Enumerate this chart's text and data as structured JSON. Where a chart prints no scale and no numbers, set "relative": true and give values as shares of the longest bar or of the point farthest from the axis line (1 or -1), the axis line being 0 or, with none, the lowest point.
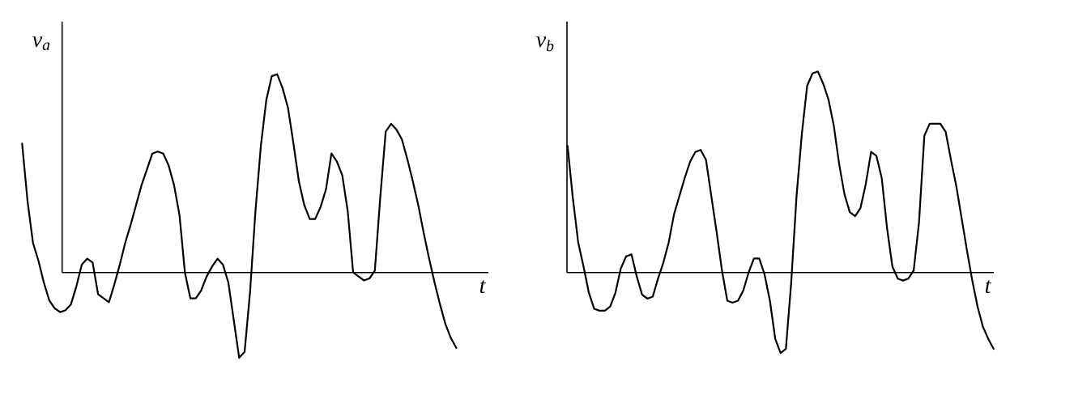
{
  "chart_data": [
    {
      "type": "line",
      "relative": true,
      "ylabel": "v$_{a}$",
      "xlabel": "t",
      "categories": [
        null,
        null,
        null,
        null,
        null,
        null,
        null,
        null,
        null,
        null,
        null,
        null,
        null,
        null,
        null,
        null,
        null,
        null,
        null,
        null,
        null,
        null,
        null,
        null,
        null,
        null,
        null,
        null,
        null,
        null,
        null,
        null,
        null,
        null,
        null,
        null,
        null,
        null,
        null,
        null,
        null,
        null,
        null,
        null,
        null,
        null,
        null,
        null,
        null,
        null,
        null,
        null,
        null,
        null,
        null,
        null,
        null,
        null,
        null,
        null,
        null,
        null,
        null,
        null,
        null,
        null,
        null,
        null,
        null,
        null,
        null,
        null,
        null,
        null,
        null,
        null,
        null,
        null,
        null,
        null,
        null
      ],
      "series": [
        {
          "color": "#000000",
          "values": [
            0.65,
            0.36,
            0.15,
            0.06,
            -0.05,
            -0.14,
            -0.18,
            -0.2,
            -0.19,
            -0.16,
            -0.07,
            0.04,
            0.07,
            0.05,
            -0.11,
            -0.13,
            -0.15,
            -0.06,
            0.04,
            0.15,
            0.24,
            0.34,
            0.44,
            0.52,
            0.6,
            0.61,
            0.6,
            0.54,
            0.44,
            0.29,
            0.0,
            -0.13,
            -0.13,
            -0.09,
            -0.02,
            0.03,
            0.07,
            0.04,
            -0.05,
            -0.24,
            -0.43,
            -0.4,
            -0.1,
            0.31,
            0.64,
            0.87,
            0.99,
            1.0,
            0.93,
            0.83,
            0.65,
            0.46,
            0.34,
            0.27,
            0.27,
            0.33,
            0.42,
            0.6,
            0.56,
            0.49,
            0.31,
            0.0,
            -0.02,
            -0.04,
            -0.03,
            0.01,
            0.38,
            0.71,
            0.75,
            0.72,
            0.67,
            0.57,
            0.46,
            0.34,
            0.2,
            0.07,
            -0.05,
            -0.16,
            -0.26,
            -0.33,
            -0.38
          ]
        }
      ]
    },
    {
      "type": "line",
      "relative": true,
      "ylabel": "v$_{b}$",
      "xlabel": "t",
      "categories": [
        null,
        null,
        null,
        null,
        null,
        null,
        null,
        null,
        null,
        null,
        null,
        null,
        null,
        null,
        null,
        null,
        null,
        null,
        null,
        null,
        null,
        null,
        null,
        null,
        null,
        null,
        null,
        null,
        null,
        null,
        null,
        null,
        null,
        null,
        null,
        null,
        null,
        null,
        null,
        null,
        null,
        null,
        null,
        null,
        null,
        null,
        null,
        null,
        null,
        null,
        null,
        null,
        null,
        null,
        null,
        null,
        null,
        null,
        null,
        null,
        null,
        null,
        null,
        null,
        null,
        null,
        null,
        null,
        null,
        null,
        null,
        null,
        null,
        null,
        null,
        null,
        null,
        null,
        null,
        null,
        null
      ],
      "series": [
        {
          "color": "#000000",
          "values": [
            0.63,
            0.37,
            0.15,
            0.03,
            -0.1,
            -0.18,
            -0.19,
            -0.19,
            -0.17,
            -0.1,
            0.02,
            0.08,
            0.09,
            -0.02,
            -0.11,
            -0.13,
            -0.12,
            -0.03,
            0.05,
            0.15,
            0.29,
            0.38,
            0.47,
            0.55,
            0.6,
            0.61,
            0.56,
            0.38,
            0.2,
            0.01,
            -0.14,
            -0.15,
            -0.14,
            -0.09,
            0.0,
            0.07,
            0.07,
            -0.01,
            -0.14,
            -0.33,
            -0.4,
            -0.38,
            -0.05,
            0.38,
            0.69,
            0.93,
            0.99,
            1.0,
            0.94,
            0.86,
            0.73,
            0.54,
            0.39,
            0.3,
            0.28,
            0.32,
            0.44,
            0.6,
            0.58,
            0.47,
            0.22,
            0.03,
            -0.03,
            -0.04,
            -0.03,
            0.01,
            0.25,
            0.68,
            0.74,
            0.74,
            0.74,
            0.7,
            0.56,
            0.43,
            0.27,
            0.11,
            -0.04,
            -0.17,
            -0.27,
            -0.33,
            -0.38
          ]
        }
      ]
    }
  ]
}
